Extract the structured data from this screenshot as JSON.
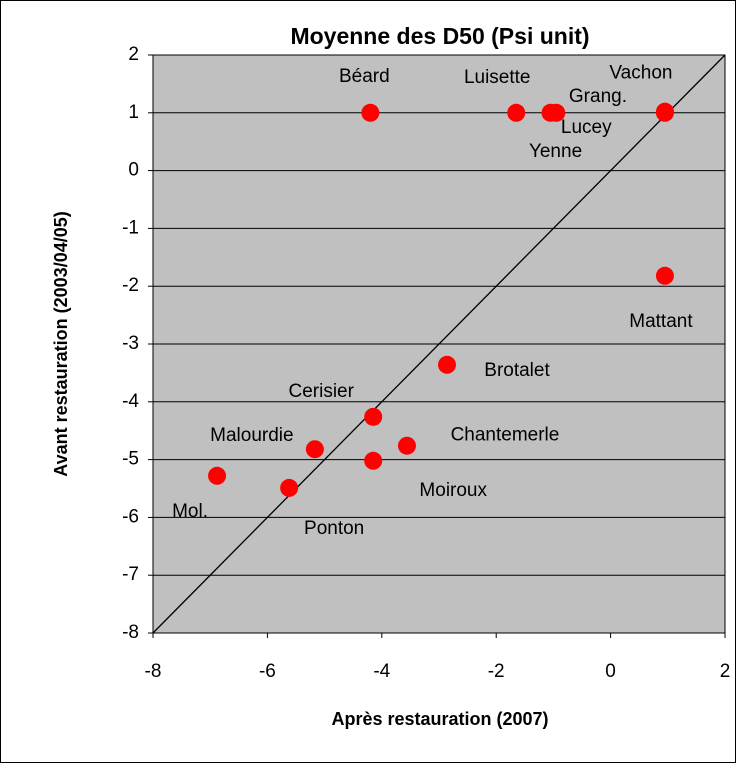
{
  "chart_data": {
    "type": "scatter",
    "title": "Moyenne des D50 (Psi unit)",
    "x_label": "Après restauration (2007)",
    "y_label": "Avant restauration (2003/04/05)",
    "point_labels": [
      "Béard",
      "Luisette",
      "Yenne",
      "Lucey",
      "Grang.",
      "Vachon",
      "Mattant",
      "Brotalet",
      "Cerisier",
      "Chantemerle",
      "Moiroux",
      "Malourdie",
      "Ponton",
      "Mol."
    ],
    "x": [
      -4.2,
      -1.65,
      -1.05,
      -0.95,
      0.95,
      0.95,
      0.95,
      -2.86,
      -4.15,
      -3.56,
      -4.15,
      -5.17,
      -5.62,
      -6.88
    ],
    "values": [
      1,
      1,
      1,
      1,
      1,
      1.02,
      -1.82,
      -3.36,
      -4.26,
      -4.76,
      -5.02,
      -4.82,
      -5.49,
      -5.28
    ],
    "color": "#ff0000",
    "xlim": [
      -8,
      2
    ],
    "xticks": [
      -8,
      -6,
      -4,
      -2,
      0,
      2
    ],
    "ylim": [
      -8,
      2
    ],
    "yticks": [
      -8,
      -7,
      -6,
      -5,
      -4,
      -3,
      -2,
      -1,
      0,
      1,
      2
    ],
    "grid": true,
    "identity_line": true
  }
}
